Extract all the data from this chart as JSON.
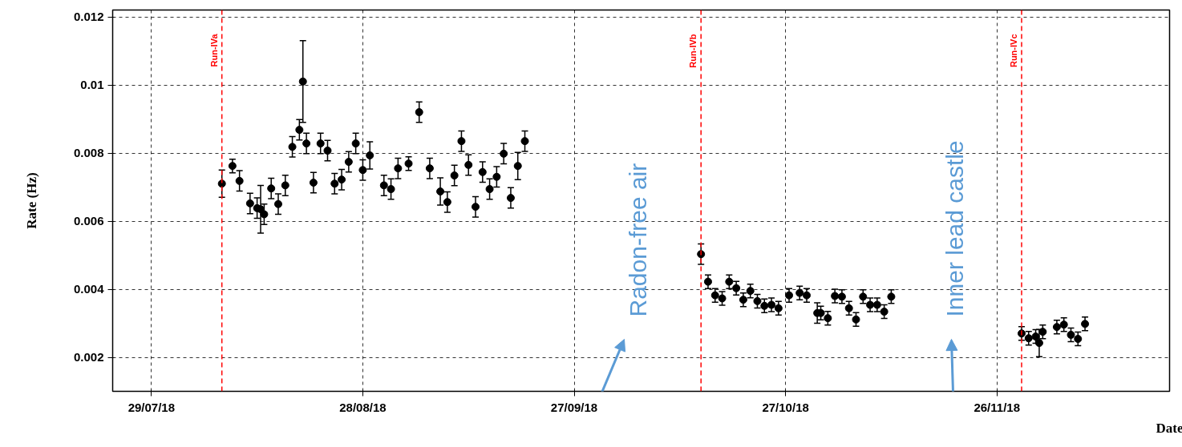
{
  "chart_data": {
    "type": "scatter",
    "xlabel": "Date",
    "ylabel": "Rate (Hz)",
    "x": [
      "2018-08-08",
      "2018-08-09T12:00",
      "2018-08-10T12:00",
      "2018-08-12",
      "2018-08-13",
      "2018-08-13T12:00",
      "2018-08-14",
      "2018-08-15",
      "2018-08-16",
      "2018-08-17",
      "2018-08-18",
      "2018-08-19",
      "2018-08-19T12:00",
      "2018-08-20",
      "2018-08-21",
      "2018-08-22",
      "2018-08-23",
      "2018-08-24",
      "2018-08-25",
      "2018-08-26",
      "2018-08-27",
      "2018-08-28",
      "2018-08-29",
      "2018-08-31",
      "2018-09-01",
      "2018-09-02",
      "2018-09-03T12:00",
      "2018-09-05",
      "2018-09-06T12:00",
      "2018-09-08",
      "2018-09-09",
      "2018-09-10",
      "2018-09-11",
      "2018-09-12",
      "2018-09-13",
      "2018-09-14",
      "2018-09-15",
      "2018-09-16",
      "2018-09-17",
      "2018-09-18",
      "2018-09-19",
      "2018-09-20",
      "2018-10-15",
      "2018-10-16",
      "2018-10-17",
      "2018-10-18",
      "2018-10-19",
      "2018-10-20",
      "2018-10-21",
      "2018-10-22",
      "2018-10-23",
      "2018-10-24",
      "2018-10-25",
      "2018-10-26",
      "2018-10-27T12:00",
      "2018-10-29",
      "2018-10-30",
      "2018-10-31T12:00",
      "2018-11-01",
      "2018-11-02",
      "2018-11-03",
      "2018-11-04",
      "2018-11-05",
      "2018-11-06",
      "2018-11-07",
      "2018-11-08",
      "2018-11-09",
      "2018-11-10",
      "2018-11-11",
      "2018-11-29T12:00",
      "2018-11-30T12:00",
      "2018-12-01T12:00",
      "2018-12-02",
      "2018-12-02T12:00",
      "2018-12-04T12:00",
      "2018-12-05T12:00",
      "2018-12-06T12:00",
      "2018-12-07T12:00",
      "2018-12-08T12:00"
    ],
    "series": [
      {
        "color": "#000000",
        "values": [
          0.0071,
          0.00762,
          0.00718,
          0.00652,
          0.00638,
          0.00635,
          0.0062,
          0.00696,
          0.0065,
          0.00705,
          0.00818,
          0.00868,
          0.0101,
          0.00828,
          0.00713,
          0.00828,
          0.00807,
          0.0071,
          0.00722,
          0.00774,
          0.00828,
          0.0075,
          0.00793,
          0.00705,
          0.00694,
          0.00755,
          0.00769,
          0.0092,
          0.00755,
          0.00687,
          0.00656,
          0.00734,
          0.00835,
          0.00765,
          0.00642,
          0.00744,
          0.00694,
          0.0073,
          0.00798,
          0.00668,
          0.00762,
          0.00835,
          0.00503,
          0.00422,
          0.00382,
          0.00373,
          0.00422,
          0.00403,
          0.00369,
          0.00395,
          0.00365,
          0.00351,
          0.00354,
          0.00344,
          0.00382,
          0.00389,
          0.00382,
          0.0033,
          0.0033,
          0.00315,
          0.0038,
          0.00378,
          0.00344,
          0.00311,
          0.00378,
          0.00354,
          0.00354,
          0.00334,
          0.00378,
          0.0027,
          0.00256,
          0.00261,
          0.00242,
          0.00275,
          0.00289,
          0.00296,
          0.00266,
          0.00254,
          0.00298
        ],
        "errors": [
          0.0004,
          0.0002,
          0.0003,
          0.0003,
          0.0003,
          0.0007,
          0.0003,
          0.0003,
          0.0003,
          0.0003,
          0.0003,
          0.0003,
          0.0012,
          0.0003,
          0.0003,
          0.0003,
          0.0003,
          0.0003,
          0.0003,
          0.0003,
          0.0003,
          0.0003,
          0.0004,
          0.0003,
          0.0003,
          0.0003,
          0.0002,
          0.0003,
          0.0003,
          0.0004,
          0.0003,
          0.0003,
          0.0003,
          0.0003,
          0.0003,
          0.0003,
          0.0003,
          0.0003,
          0.0003,
          0.0003,
          0.0004,
          0.0003,
          0.0003,
          0.0002,
          0.0002,
          0.0002,
          0.0002,
          0.0002,
          0.0002,
          0.0002,
          0.0002,
          0.0002,
          0.0002,
          0.0002,
          0.0002,
          0.0002,
          0.0002,
          0.0003,
          0.0002,
          0.0002,
          0.0002,
          0.0002,
          0.0002,
          0.0002,
          0.0002,
          0.0002,
          0.0002,
          0.0002,
          0.0002,
          0.0002,
          0.0002,
          0.0002,
          0.0004,
          0.0002,
          0.0002,
          0.0002,
          0.0002,
          0.0002,
          0.0002
        ]
      }
    ],
    "xlim": [
      "2018-07-23T12:00",
      "2018-12-20T12:00"
    ],
    "xticks": [
      {
        "value": "2018-07-29",
        "label": "29/07/18"
      },
      {
        "value": "2018-08-28",
        "label": "28/08/18"
      },
      {
        "value": "2018-09-27",
        "label": "27/09/18"
      },
      {
        "value": "2018-10-27",
        "label": "27/10/18"
      },
      {
        "value": "2018-11-26",
        "label": "26/11/18"
      }
    ],
    "ylim": [
      0.001,
      0.0122
    ],
    "yticks": [
      0.002,
      0.004,
      0.006,
      0.008,
      0.01,
      0.012
    ],
    "grid": true,
    "marker": "circle",
    "ref_lines": [
      {
        "axis": "x",
        "value": "2018-08-08",
        "label": "Run-IVa",
        "color": "#ff0000",
        "line_style": "dashed"
      },
      {
        "axis": "x",
        "value": "2018-10-15",
        "label": "Run-IVb",
        "color": "#ff0000",
        "line_style": "dashed"
      },
      {
        "axis": "x",
        "value": "2018-11-29T12:00",
        "label": "Run-IVc",
        "color": "#ff0000",
        "line_style": "dashed"
      }
    ],
    "annotations": [
      "Radon-free air",
      "Inner lead castle"
    ]
  }
}
